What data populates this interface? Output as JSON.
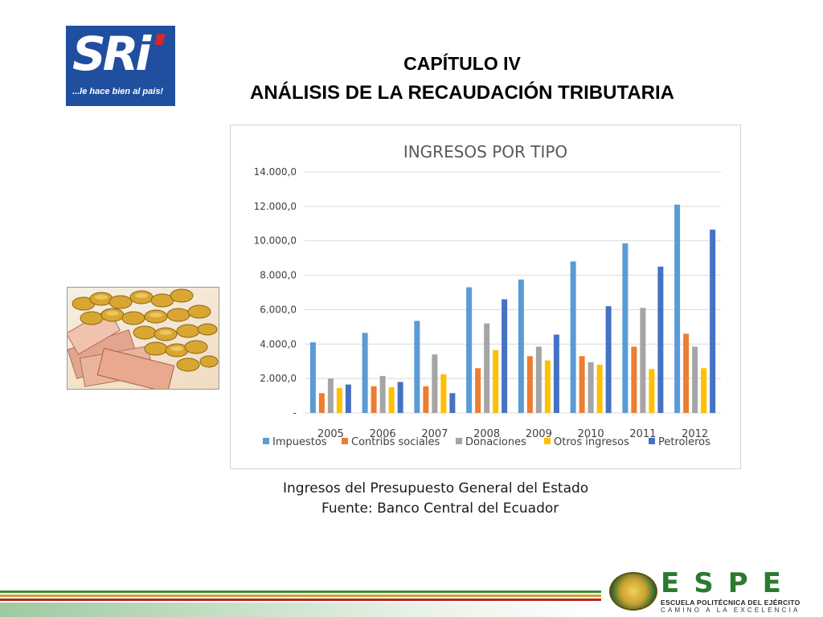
{
  "logo": {
    "brand": "SRi",
    "tagline": "...le hace bien al país!"
  },
  "header": {
    "line1": "CAPÍTULO IV",
    "line2": "ANÁLISIS DE LA RECAUDACIÓN TRIBUTARIA"
  },
  "caption": {
    "line1": "Ingresos del Presupuesto General del Estado",
    "line2": "Fuente: Banco Central del Ecuador"
  },
  "footer": {
    "letters": "ESPE",
    "line1": "ESCUELA POLITÉCNICA DEL EJÉRCITO",
    "line2": "CAMINO A LA EXCELENCIA"
  },
  "chart_data": {
    "type": "bar",
    "title": "INGRESOS POR TIPO",
    "xlabel": "",
    "ylabel": "",
    "categories": [
      "2005",
      "2006",
      "2007",
      "2008",
      "2009",
      "2010",
      "2011",
      "2012"
    ],
    "ylim": [
      0,
      14000
    ],
    "y_ticks": [
      "-",
      "2.000,0",
      "4.000,0",
      "6.000,0",
      "8.000,0",
      "10.000,0",
      "12.000,0",
      "14.000,0"
    ],
    "grid": true,
    "legend_position": "bottom",
    "series": [
      {
        "name": "Impuestos",
        "color": "#5b9bd5",
        "values": [
          4100,
          4650,
          5350,
          7300,
          7750,
          8800,
          9850,
          12100
        ]
      },
      {
        "name": "Contribs sociales",
        "color": "#ed7d31",
        "values": [
          1150,
          1550,
          1550,
          2600,
          3300,
          3300,
          3850,
          4600
        ]
      },
      {
        "name": "Donaciones",
        "color": "#a5a5a5",
        "values": [
          2000,
          2150,
          3400,
          5200,
          3850,
          2950,
          6100,
          3850
        ]
      },
      {
        "name": "Otros ingresos",
        "color": "#ffc000",
        "values": [
          1450,
          1500,
          2250,
          3650,
          3050,
          2800,
          2550,
          2600
        ]
      },
      {
        "name": "Petroleros",
        "color": "#4472c4",
        "values": [
          1650,
          1800,
          1150,
          6600,
          4550,
          6200,
          8500,
          10650
        ]
      }
    ]
  }
}
